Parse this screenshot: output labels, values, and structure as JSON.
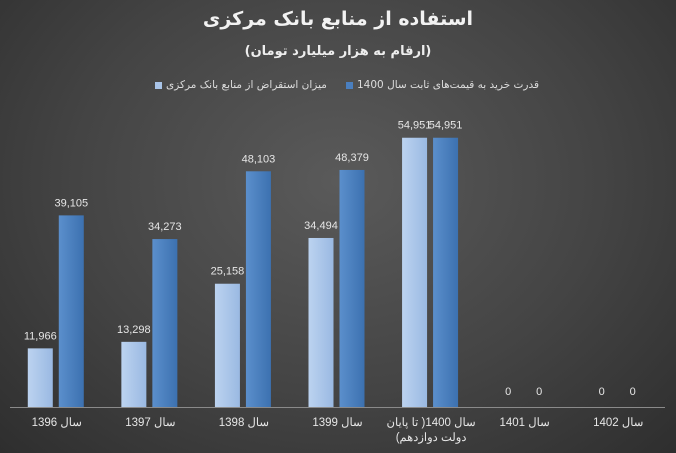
{
  "chart_data": {
    "type": "bar",
    "title": "استفاده از منابع بانک مرکزی",
    "subtitle": "(ارقام به هزار میلیارد تومان)",
    "categories": [
      "سال 1396",
      "سال 1397",
      "سال 1398",
      "سال 1399",
      "سال 1400( تا پایان دولت دوازدهم)",
      "سال 1401",
      "سال 1402"
    ],
    "series": [
      {
        "name": "میزان استقراض از منابع بانک مرکزی",
        "color": "#a9c4e8",
        "values": [
          11966,
          13298,
          25158,
          34494,
          54951,
          0,
          0
        ],
        "labels": [
          "11,966",
          "13,298",
          "25,158",
          "34,494",
          "54,951",
          "0",
          "0"
        ]
      },
      {
        "name": "قدرت خرید به قیمت‌های ثابت سال 1400",
        "color": "#4a7fbf",
        "values": [
          39105,
          34273,
          48103,
          48379,
          54951,
          0,
          0
        ],
        "labels": [
          "39,105",
          "34,273",
          "48,103",
          "48,379",
          "54,951",
          "0",
          "0"
        ]
      }
    ],
    "ylim": [
      0,
      60000
    ],
    "grid": false,
    "legend": "top"
  }
}
